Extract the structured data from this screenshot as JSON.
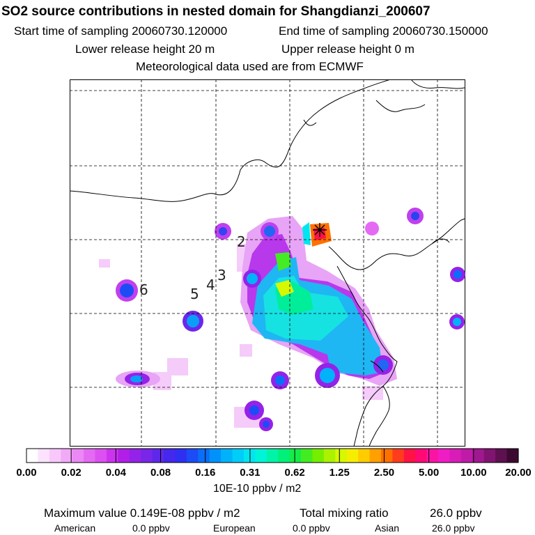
{
  "header": {
    "title": "SO2 source contributions in nested domain for Shangdianzi_200607",
    "start_sampling": "Start time of sampling 20060730.120000",
    "end_sampling": "End time of sampling 20060730.150000",
    "lower_release": "Lower release height   20 m",
    "upper_release": "Upper release height    0 m",
    "met_data": "Meteorological data used are from ECMWF"
  },
  "map": {
    "track_labels": [
      "2",
      "3",
      "4",
      "5",
      "6"
    ],
    "receptor_marker": "asterisk-icon",
    "background_color": "#ffffff",
    "coastline_color": "#000000",
    "gridline_style": "dashed"
  },
  "colorbar": {
    "tick_labels": [
      "0.00",
      "0.02",
      "0.04",
      "0.08",
      "0.16",
      "0.31",
      "0.62",
      "1.25",
      "2.50",
      "5.00",
      "10.00",
      "20.00"
    ],
    "colors": [
      "#ffffff",
      "#fde2fd",
      "#f8c8fb",
      "#f2aaf8",
      "#ec88f5",
      "#e46af3",
      "#dc50f2",
      "#cc33ee",
      "#b21ee8",
      "#9422e8",
      "#7a26e8",
      "#5e28ea",
      "#4527ee",
      "#2f2ff2",
      "#1c4cf6",
      "#0a6ef8",
      "#0092fa",
      "#00b2fa",
      "#00cdf8",
      "#00e6f0",
      "#00f4d8",
      "#00f4a8",
      "#00f07a",
      "#14ec48",
      "#42ec20",
      "#76ee00",
      "#aaf200",
      "#d6f800",
      "#f6ee00",
      "#ffcc00",
      "#ffa000",
      "#ff7000",
      "#ff3c1c",
      "#ff1244",
      "#ff0a74",
      "#fa14a4",
      "#f01cc4",
      "#d81cb8",
      "#c01aa8",
      "#a01890",
      "#801470",
      "#5e1050",
      "#3c0a30"
    ],
    "unit": "10E-10 ppbv / m2"
  },
  "footer": {
    "max_value": "Maximum value  0.149E-08 ppbv / m2",
    "total_label": "Total mixing ratio",
    "total_value": "26.0 ppbv",
    "regions": [
      {
        "name": "American",
        "value": "0.0 ppbv"
      },
      {
        "name": "European",
        "value": "0.0 ppbv"
      },
      {
        "name": "Asian",
        "value": "26.0 ppbv"
      }
    ]
  }
}
